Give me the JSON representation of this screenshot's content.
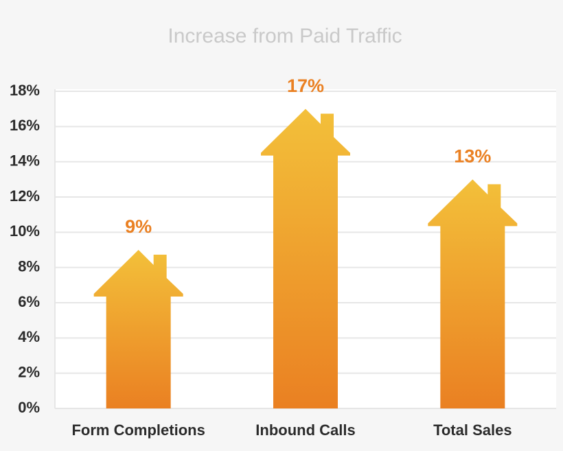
{
  "chart_data": {
    "type": "house-bar",
    "title": "Increase from Paid Traffic",
    "categories": [
      "Form Completions",
      "Inbound Calls",
      "Total Sales"
    ],
    "values": [
      9,
      17,
      13
    ],
    "value_labels": [
      "9%",
      "17%",
      "13%"
    ],
    "color": [
      "#f3c03a",
      "#ea8022"
    ],
    "ylim": [
      0,
      18
    ],
    "yticks": [
      {
        "value": 0,
        "label": "0%"
      },
      {
        "value": 2,
        "label": "2%"
      },
      {
        "value": 4,
        "label": "4%"
      },
      {
        "value": 6,
        "label": "6%"
      },
      {
        "value": 8,
        "label": "8%"
      },
      {
        "value": 10,
        "label": "10%"
      },
      {
        "value": 12,
        "label": "12%"
      },
      {
        "value": 14,
        "label": "14%"
      },
      {
        "value": 16,
        "label": "16%"
      },
      {
        "value": 18,
        "label": "18%"
      }
    ],
    "grid": true
  }
}
